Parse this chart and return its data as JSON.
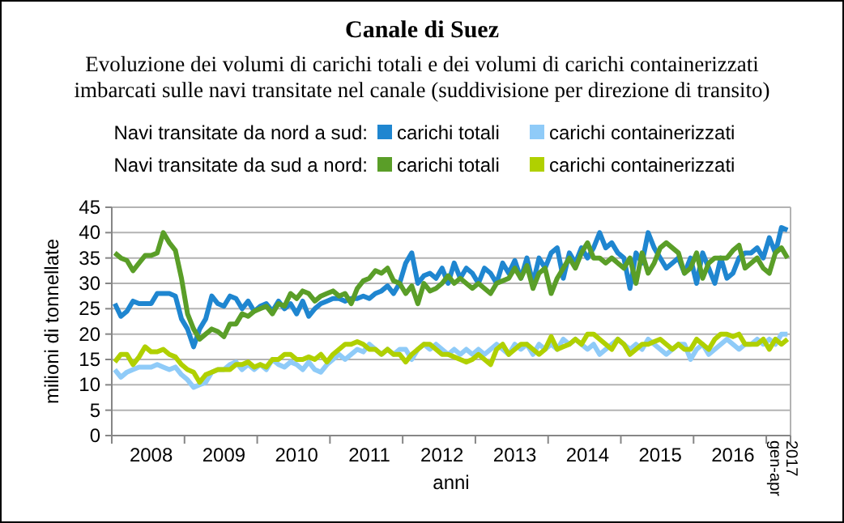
{
  "chart_data": {
    "type": "line",
    "title": "Canale di Suez",
    "subtitle": "Evoluzione dei volumi di carichi totali e dei volumi di carichi containerizzati imbarcati sulle navi transitate nel canale (suddivisione per direzione di transito)",
    "xlabel": "anni",
    "ylabel": "milioni di tonnellate",
    "annotations": [
      "Navi transitate da nord a sud:",
      "Navi transitate da sud a nord:"
    ],
    "categories": [
      null,
      null,
      null,
      null,
      null,
      null,
      "2008",
      null,
      null,
      null,
      null,
      null,
      null,
      null,
      null,
      null,
      null,
      null,
      "2009",
      null,
      null,
      null,
      null,
      null,
      null,
      null,
      null,
      null,
      null,
      null,
      "2010",
      null,
      null,
      null,
      null,
      null,
      null,
      null,
      null,
      null,
      null,
      null,
      "2011",
      null,
      null,
      null,
      null,
      null,
      null,
      null,
      null,
      null,
      null,
      null,
      "2012",
      null,
      null,
      null,
      null,
      null,
      null,
      null,
      null,
      null,
      null,
      null,
      "2013",
      null,
      null,
      null,
      null,
      null,
      null,
      null,
      null,
      null,
      null,
      null,
      "2014",
      null,
      null,
      null,
      null,
      null,
      null,
      null,
      null,
      null,
      null,
      null,
      "2015",
      null,
      null,
      null,
      null,
      null,
      null,
      null,
      null,
      null,
      null,
      null,
      "2016",
      null,
      null,
      null,
      null,
      null,
      null,
      null,
      "2017 gen-apr",
      null
    ],
    "ylim": [
      0,
      45
    ],
    "yticks": [
      0,
      5,
      10,
      15,
      20,
      25,
      30,
      35,
      40,
      45
    ],
    "grid": "y",
    "legend": "top",
    "marker": "none",
    "line_style": "solid",
    "series": [
      {
        "name": "carichi totali",
        "color": "#1f86d0",
        "values": [
          26,
          23.5,
          24.5,
          26.5,
          26,
          26,
          26,
          28,
          28,
          28,
          27.5,
          23,
          21,
          17.5,
          21,
          23,
          27.5,
          26,
          25.5,
          27.5,
          27,
          25,
          26.5,
          24.5,
          25.5,
          26,
          24.5,
          26.5,
          25,
          26,
          24,
          26.5,
          23.5,
          25,
          26,
          26.5,
          27,
          27,
          26.5,
          27,
          27,
          27.5,
          27,
          28,
          28.5,
          29.5,
          28,
          30,
          34,
          36,
          30,
          31.5,
          32,
          31,
          33,
          30,
          34,
          31,
          33,
          32,
          30,
          33,
          32,
          30,
          34,
          32,
          34.5,
          31,
          35,
          30,
          35,
          33,
          36,
          37,
          31,
          36,
          34,
          37,
          35,
          37,
          40,
          37,
          38,
          36,
          35,
          29,
          36,
          34,
          40,
          37,
          35,
          33,
          34,
          35,
          32,
          35,
          30,
          36,
          33,
          30,
          35,
          31,
          32,
          35,
          36,
          36,
          37,
          35,
          39,
          36,
          41,
          40.5
        ]
      },
      {
        "name": "carichi containerizzati",
        "color": "#8fcbf8",
        "values": [
          13,
          11.5,
          12.5,
          13,
          13.5,
          13.5,
          13.5,
          14,
          13.5,
          13,
          13.5,
          12,
          11,
          9.5,
          10,
          10.5,
          12.5,
          13,
          13,
          14,
          14.5,
          13,
          14,
          13,
          14,
          13,
          15,
          14,
          13.5,
          14.5,
          14,
          13,
          14.5,
          13,
          12.5,
          14,
          15,
          16,
          15,
          16,
          17,
          16.5,
          18,
          17,
          16,
          17,
          16,
          17,
          17,
          15,
          17,
          18,
          17,
          18,
          17,
          16,
          17,
          16,
          17,
          16,
          17,
          16,
          17,
          18,
          17,
          16,
          18,
          17,
          18,
          16,
          18,
          17,
          18,
          17,
          19,
          18,
          19,
          18,
          17,
          18,
          16,
          17,
          18,
          19,
          18,
          17,
          18,
          17,
          19,
          18,
          17,
          16,
          17,
          18,
          18,
          15,
          17,
          18,
          16,
          17,
          18,
          19,
          18,
          17,
          18,
          18,
          19,
          18,
          19,
          18,
          20,
          20
        ]
      },
      {
        "name": "carichi totali",
        "color": "#5a9e28",
        "values": [
          36,
          35,
          34.5,
          32.5,
          34,
          35.5,
          35.5,
          36,
          40,
          38,
          36.5,
          31,
          24,
          21,
          19,
          20,
          21,
          20.5,
          19.5,
          22,
          22,
          24,
          23.5,
          24.5,
          25,
          25.5,
          24,
          26,
          25.5,
          28,
          27,
          28.5,
          28,
          26.5,
          27.5,
          28,
          28.5,
          27.5,
          28,
          26,
          29,
          30.5,
          31,
          32.5,
          32,
          33,
          30.5,
          30,
          28,
          29.5,
          26,
          30,
          28.5,
          29,
          30,
          31.5,
          30,
          31,
          30,
          29,
          30,
          29,
          28,
          30,
          30.5,
          31,
          33,
          31,
          33.5,
          29,
          32,
          33,
          28,
          31,
          33,
          35,
          33,
          36,
          38,
          35,
          35,
          34,
          35,
          34,
          33,
          35,
          30,
          36,
          32,
          34,
          37,
          38,
          37,
          36,
          32,
          33,
          36,
          31,
          34,
          35,
          35,
          35,
          36.5,
          37.5,
          33,
          34,
          35,
          33,
          32,
          36,
          37,
          35
        ]
      },
      {
        "name": "carichi containerizzati",
        "color": "#b0d000",
        "values": [
          14.5,
          16,
          16,
          14,
          15.5,
          17.5,
          16.5,
          16.5,
          17,
          16,
          15.5,
          14,
          13,
          12.5,
          10.5,
          12,
          12.5,
          13,
          13,
          13,
          14,
          14,
          14.5,
          13.5,
          14,
          13.5,
          15,
          15,
          16,
          16,
          15,
          15,
          15.5,
          15,
          16,
          14.5,
          16,
          17,
          18,
          18,
          18.5,
          18,
          17,
          17,
          16,
          17,
          16,
          16,
          14.5,
          16,
          17,
          18,
          18,
          17,
          16,
          16,
          15.5,
          15,
          14.5,
          15,
          16,
          15,
          14,
          17,
          18,
          16,
          17,
          18,
          18,
          17,
          16,
          17,
          19.5,
          17,
          17.5,
          18,
          19,
          18,
          20,
          20,
          19,
          18,
          17,
          19,
          18,
          16,
          17,
          18,
          18,
          18.5,
          19,
          18,
          17,
          18,
          17,
          17,
          19,
          18,
          17,
          19,
          20,
          20,
          19.5,
          20,
          18,
          18,
          18,
          19,
          17,
          19,
          18,
          19
        ]
      }
    ]
  }
}
